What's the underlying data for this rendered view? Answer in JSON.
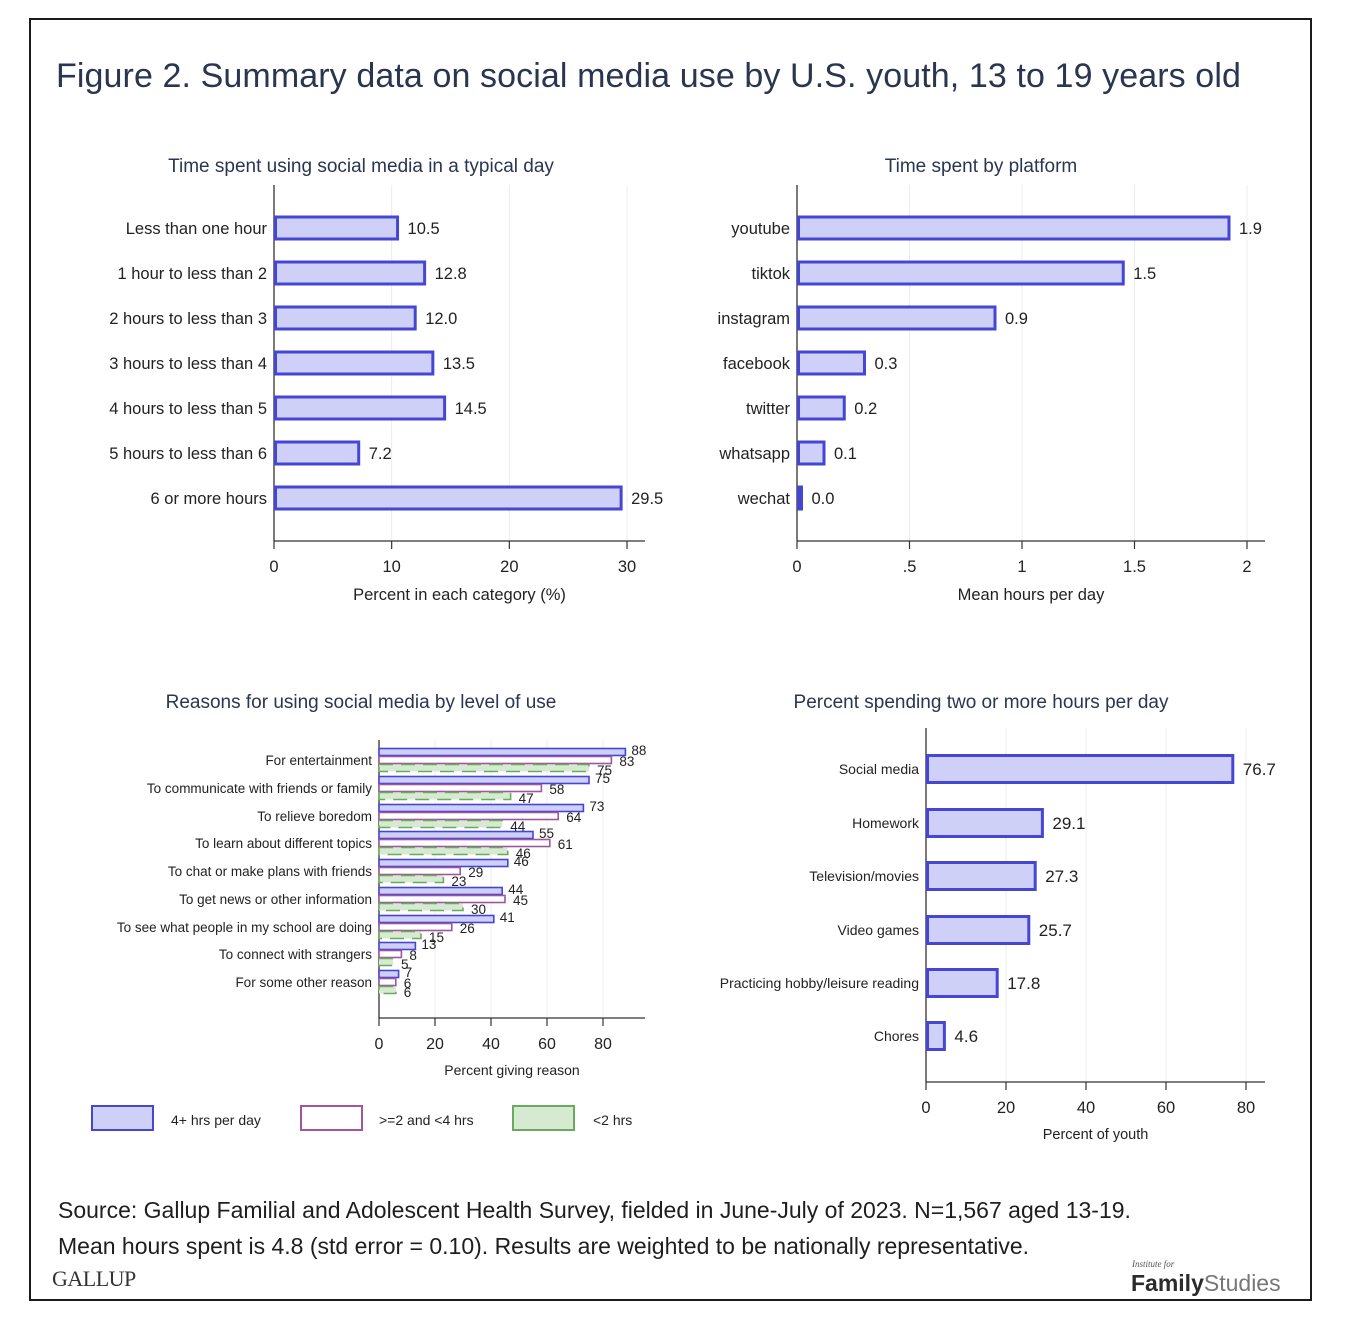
{
  "figure": {
    "title": "Figure 2. Summary data on social media use by U.S. youth, 13 to 19 years old",
    "source_line1": "Source: Gallup Familial and Adolescent Health Survey, fielded in June-July of 2023. N=1,567 aged 13-19.",
    "source_line2": "Mean hours spent is 4.8 (std error = 0.10). Results are weighted to be nationally representative.",
    "logo_left": "GALLUP",
    "logo_right_small": "Institute for",
    "logo_right_bold": "Family",
    "logo_right_light": "Studies"
  },
  "colors": {
    "bar_fill": "#cfd0f7",
    "bar_stroke": "#4646d4",
    "series2_stroke": "#a0569e",
    "series2_fill": "#ffffff",
    "series3_fill": "#d5ead0",
    "series3_stroke": "#6aaa5f",
    "title_color": "#2a3550",
    "grid": "#ececec"
  },
  "chart_data": [
    {
      "id": "time-spent",
      "type": "bar",
      "orientation": "horizontal",
      "title": "Time spent using social media in a typical day",
      "categories": [
        "Less than one hour",
        "1 hour to less than 2",
        "2 hours to less than 3",
        "3 hours to less than 4",
        "4 hours to less than 5",
        "5 hours to less than 6",
        "6 or more hours"
      ],
      "values": [
        10.5,
        12.8,
        12.0,
        13.5,
        14.5,
        7.2,
        29.5
      ],
      "labels": [
        "10.5",
        "12.8",
        "12.0",
        "13.5",
        "14.5",
        "7.2",
        "29.5"
      ],
      "xlabel": "Percent in each category (%)",
      "ylabel": "",
      "xlim": [
        0,
        31.5
      ],
      "xticks": [
        0,
        10,
        20,
        30
      ],
      "xtick_labels": [
        "0",
        "10",
        "20",
        "30"
      ],
      "grid": true
    },
    {
      "id": "by-platform",
      "type": "bar",
      "orientation": "horizontal",
      "title": "Time spent by platform",
      "categories": [
        "youtube",
        "tiktok",
        "instagram",
        "facebook",
        "twitter",
        "whatsapp",
        "wechat"
      ],
      "values": [
        1.92,
        1.45,
        0.88,
        0.3,
        0.21,
        0.12,
        0.02
      ],
      "labels": [
        "1.9",
        "1.5",
        "0.9",
        "0.3",
        "0.2",
        "0.1",
        "0.0"
      ],
      "xlabel": "Mean hours per day",
      "ylabel": "",
      "xlim": [
        0,
        2.08
      ],
      "xticks": [
        0,
        0.5,
        1,
        1.5,
        2
      ],
      "xtick_labels": [
        "0",
        ".5",
        "1",
        "1.5",
        "2"
      ],
      "grid": true
    },
    {
      "id": "reasons",
      "type": "bar",
      "orientation": "horizontal",
      "title": "Reasons for using social media by level of use",
      "categories": [
        "For entertainment",
        "To communicate with friends or family",
        "To relieve boredom",
        "To learn about different topics",
        "To chat or make plans with friends",
        "To get news or other information",
        "To see what people in my school are doing",
        "To connect with strangers",
        "For some other reason"
      ],
      "series": [
        {
          "name": "4+ hrs per day",
          "values": [
            88,
            75,
            73,
            55,
            46,
            44,
            41,
            13,
            7
          ]
        },
        {
          "name": ">=2 and <4 hrs",
          "values": [
            83,
            58,
            64,
            61,
            29,
            45,
            26,
            8,
            6
          ]
        },
        {
          "name": "<2 hrs",
          "values": [
            75,
            47,
            44,
            46,
            23,
            30,
            15,
            5,
            6
          ]
        }
      ],
      "xlabel": "Percent giving reason",
      "ylabel": "",
      "xlim": [
        0,
        95
      ],
      "xticks": [
        0,
        20,
        40,
        60,
        80
      ],
      "xtick_labels": [
        "0",
        "20",
        "40",
        "60",
        "80"
      ],
      "legend": "bottom",
      "grid": true
    },
    {
      "id": "two-plus-hours",
      "type": "bar",
      "orientation": "horizontal",
      "title": "Percent spending two or more hours per day",
      "categories": [
        "Social media",
        "Homework",
        "Television/movies",
        "Video games",
        "Practicing hobby/leisure reading",
        "Chores"
      ],
      "values": [
        76.7,
        29.1,
        27.3,
        25.7,
        17.8,
        4.6
      ],
      "labels": [
        "76.7",
        "29.1",
        "27.3",
        "25.7",
        "17.8",
        "4.6"
      ],
      "xlabel": "Percent of youth",
      "ylabel": "",
      "xlim": [
        0,
        84
      ],
      "xticks": [
        0,
        20,
        40,
        60,
        80
      ],
      "xtick_labels": [
        "0",
        "20",
        "40",
        "60",
        "80"
      ],
      "grid": true
    }
  ]
}
